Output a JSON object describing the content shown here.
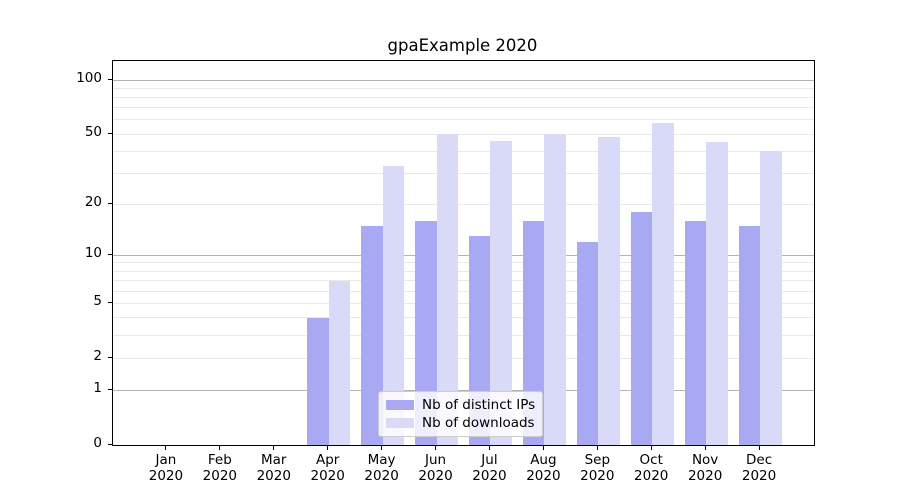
{
  "title": "gpaExample 2020",
  "chart_data": {
    "type": "bar",
    "title": "gpaExample 2020",
    "categories": [
      "Jan",
      "Feb",
      "Mar",
      "Apr",
      "May",
      "Jun",
      "Jul",
      "Aug",
      "Sep",
      "Oct",
      "Nov",
      "Dec"
    ],
    "x_year_label": "2020",
    "series": [
      {
        "name": "Nb of distinct IPs",
        "color": "#a9a9f3",
        "values": [
          0,
          0,
          0,
          4,
          15,
          16,
          13,
          16,
          12,
          18,
          16,
          15
        ]
      },
      {
        "name": "Nb of downloads",
        "color": "#d9d9f8",
        "values": [
          0,
          0,
          0,
          7,
          33,
          50,
          46,
          50,
          48,
          58,
          45,
          40
        ]
      }
    ],
    "y_scale": "log1p",
    "y_ticks": [
      0,
      1,
      2,
      5,
      10,
      20,
      50,
      100
    ],
    "y_major_grid": [
      1,
      10,
      100
    ],
    "y_minor_grid": [
      2,
      3,
      4,
      5,
      6,
      7,
      8,
      9,
      20,
      30,
      40,
      50,
      60,
      70,
      80,
      90
    ],
    "y_top_value": 127.5,
    "ylim": [
      0,
      127.5
    ],
    "grid": true,
    "legend_position": "lower-center"
  },
  "legend": {
    "items": [
      {
        "label": "Nb of distinct IPs"
      },
      {
        "label": "Nb of downloads"
      }
    ]
  },
  "colors": {
    "bar_distinct_ips": "#a9a9f3",
    "bar_downloads": "#d9d9f8",
    "grid_major": "#b3b3b3",
    "grid_minor": "#e9e9e9",
    "axis": "#000000",
    "legend_border": "#cccccc"
  }
}
